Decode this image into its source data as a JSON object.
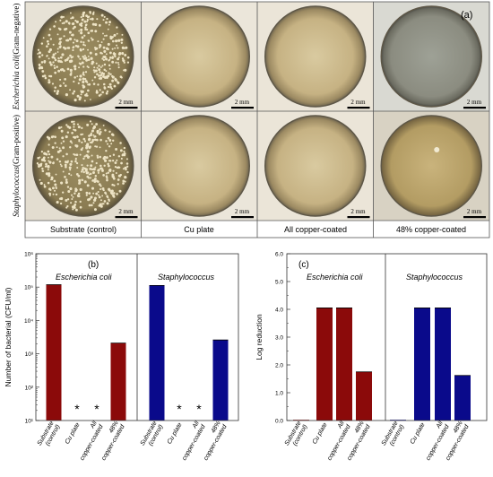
{
  "panel_a": {
    "label": "(a)",
    "row_labels": [
      {
        "genus": "Escherichia coli",
        "gram": "(Gram-negative)"
      },
      {
        "genus": "Staphylococcus",
        "gram": "(Gram-positive)"
      }
    ],
    "column_labels": [
      "Substrate (control)",
      "Cu plate",
      "All copper-coated",
      "48% copper-coated"
    ],
    "scale_bar_label": "2 mm",
    "colony_density": [
      [
        1.0,
        0,
        0,
        0
      ],
      [
        1.0,
        0,
        0,
        0.01
      ]
    ]
  },
  "chart_b": {
    "label": "(b)",
    "type": "bar",
    "ylabel": "Number of bacterial (CFU/ml)",
    "yscale": "log",
    "ylim": [
      10,
      1000000
    ],
    "ytick_labels": [
      "10¹",
      "10²",
      "10³",
      "10⁴",
      "10⁵",
      "10⁶"
    ],
    "categories": [
      "Substrate (control)",
      "Cu plate",
      "All copper-coated",
      "48% copper-coated"
    ],
    "series": [
      {
        "name": "Escherichia coli",
        "color": "#8b0a0a",
        "values": [
          118000,
          null,
          null,
          2100
        ],
        "markers": [
          "",
          "*",
          "*",
          ""
        ]
      },
      {
        "name": "Staphylococcus",
        "color": "#0a0a8b",
        "values": [
          112000,
          null,
          null,
          2600
        ],
        "markers": [
          "",
          "*",
          "*",
          ""
        ]
      }
    ]
  },
  "chart_c": {
    "label": "(c)",
    "type": "bar",
    "ylabel": "Log reduction",
    "ylim": [
      0,
      6
    ],
    "ytick_labels": [
      "0.0",
      "1.0",
      "2.0",
      "3.0",
      "4.0",
      "5.0",
      "6.0"
    ],
    "categories": [
      "Substrate (control)",
      "Cu plate",
      "All copper-coated",
      "48% copper-coated"
    ],
    "series": [
      {
        "name": "Escherichia coli",
        "color": "#8b0a0a",
        "values": [
          0.0,
          4.05,
          4.05,
          1.75
        ]
      },
      {
        "name": "Staphylococcus",
        "color": "#0a0a8b",
        "values": [
          0.0,
          4.05,
          4.05,
          1.62
        ]
      }
    ]
  },
  "chart_data": [
    {
      "type": "bar",
      "title": "(b)",
      "ylabel": "Number of bacterial (CFU/ml)",
      "yscale": "log",
      "ylim": [
        10,
        1000000
      ],
      "categories": [
        "Substrate (control)",
        "Cu plate",
        "All copper-coated",
        "48% copper-coated"
      ],
      "series": [
        {
          "name": "Escherichia coli",
          "values": [
            118000,
            null,
            null,
            2100
          ]
        },
        {
          "name": "Staphylococcus",
          "values": [
            112000,
            null,
            null,
            2600
          ]
        }
      ]
    },
    {
      "type": "bar",
      "title": "(c)",
      "ylabel": "Log reduction",
      "ylim": [
        0,
        6
      ],
      "categories": [
        "Substrate (control)",
        "Cu plate",
        "All copper-coated",
        "48% copper-coated"
      ],
      "series": [
        {
          "name": "Escherichia coli",
          "values": [
            0.0,
            4.05,
            4.05,
            1.75
          ]
        },
        {
          "name": "Staphylococcus",
          "values": [
            0.0,
            4.05,
            4.05,
            1.62
          ]
        }
      ]
    }
  ]
}
